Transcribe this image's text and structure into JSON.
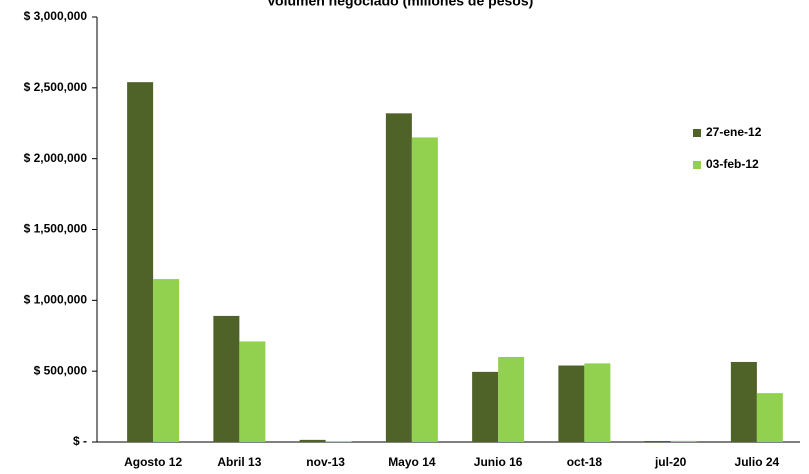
{
  "chart_data": {
    "type": "bar",
    "title": "Volumen negociado (millones de pesos)",
    "categories": [
      "Agosto 12",
      "Abril 13",
      "nov-13",
      "Mayo 14",
      "Junio 16",
      "oct-18",
      "jul-20",
      "Julio 24"
    ],
    "series": [
      {
        "name": "27-ene-12",
        "color": "#4f6228",
        "values": [
          2540000,
          890000,
          15000,
          2320000,
          495000,
          540000,
          7000,
          565000
        ]
      },
      {
        "name": "03-feb-12",
        "color": "#92d050",
        "values": [
          1150000,
          710000,
          5000,
          2150000,
          600000,
          555000,
          8000,
          345000
        ]
      }
    ],
    "ylim": [
      0,
      3000000
    ],
    "yticks": [
      {
        "value": 0,
        "label": "$ -"
      },
      {
        "value": 500000,
        "label": "$ 500,000"
      },
      {
        "value": 1000000,
        "label": "$ 1,000,000"
      },
      {
        "value": 1500000,
        "label": "$ 1,500,000"
      },
      {
        "value": 2000000,
        "label": "$ 2,000,000"
      },
      {
        "value": 2500000,
        "label": "$ 2,500,000"
      },
      {
        "value": 3000000,
        "label": "$ 3,000,000"
      }
    ],
    "legend": "right"
  }
}
